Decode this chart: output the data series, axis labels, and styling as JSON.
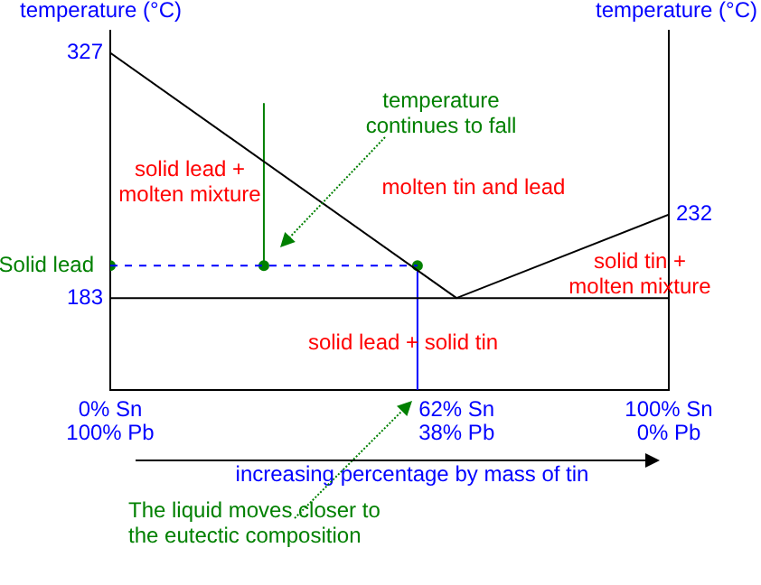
{
  "chart_data": {
    "type": "line",
    "ylabel": "temperature (°C)",
    "y2label": "temperature (°C)",
    "xlabel": "increasing percentage by mass of tin",
    "xlim": [
      0,
      100
    ],
    "xticks": [
      {
        "value": 0,
        "label": "0% Sn"
      },
      {
        "value": 62,
        "label": "62% Sn"
      },
      {
        "value": 100,
        "label": "100% Sn"
      }
    ],
    "ylim": [
      129,
      340
    ],
    "yticks": [
      183,
      327
    ],
    "grid": false,
    "legend": false,
    "series": [
      {
        "x": [
          0,
          62,
          100
        ],
        "values": [
          327,
          183,
          232
        ],
        "color": "#000000",
        "marker": "none",
        "line_style": "solid"
      },
      {
        "x": [
          0,
          27.5,
          55
        ],
        "values": [
          202,
          202,
          202
        ],
        "color": "#0000ff",
        "marker": "none",
        "line_style": "dashed"
      },
      {
        "type": "scatter",
        "x": [
          0,
          27.5,
          55
        ],
        "values": [
          202,
          202,
          202
        ],
        "color": "#008000",
        "marker": "circle"
      },
      {
        "x": [
          27.5,
          27.5
        ],
        "values": [
          297,
          202
        ],
        "color": "#008000",
        "marker": "none",
        "line_style": "solid"
      },
      {
        "x": [
          55,
          55
        ],
        "values": [
          202,
          129
        ],
        "color": "#0000ff",
        "marker": "none",
        "line_style": "solid"
      }
    ],
    "ref_lines": [
      {
        "axis": "y",
        "value": 183,
        "color": "#000000"
      }
    ],
    "annotations": [
      "solid lead +\nmolten mixture",
      "molten tin and lead",
      "solid tin +\nmolten mixture",
      "solid lead + solid tin",
      {
        "text": "Solid lead",
        "x": 0,
        "y": 202
      },
      "temperature\ncontinues to fall",
      "The liquid moves closer to\nthe eutectic composition",
      {
        "text": "232",
        "x": 100,
        "y": 232
      },
      "100% Pb",
      "38% Pb",
      "0% Pb"
    ]
  }
}
